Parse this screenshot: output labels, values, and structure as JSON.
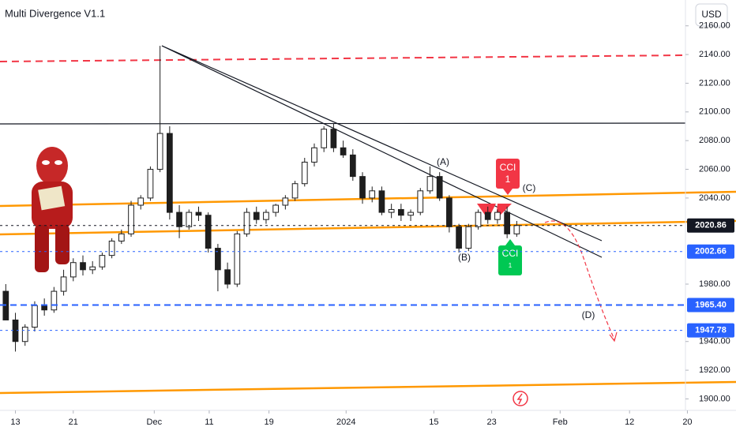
{
  "chart_data": {
    "type": "candlestick",
    "title": "Multi Divergence V1.1",
    "currency": "USD",
    "x": [
      -1,
      0,
      1,
      2,
      3,
      4,
      5,
      6,
      7,
      8,
      9,
      10,
      11,
      12,
      13,
      14,
      15,
      16,
      17,
      18,
      19,
      20,
      21,
      22,
      23,
      24,
      25,
      26,
      27,
      28,
      29,
      30,
      31,
      32,
      33,
      34,
      35,
      36,
      37,
      38,
      39,
      40,
      41,
      42,
      43,
      44,
      45,
      46,
      47,
      48,
      49,
      50,
      51,
      52
    ],
    "open": [
      1975,
      1955,
      1940,
      1950,
      1965,
      1962,
      1975,
      1985,
      1995,
      1990,
      1992,
      2000,
      2010,
      2015,
      2035,
      2040,
      2060,
      2085,
      2030,
      2020,
      2030,
      2028,
      2005,
      1990,
      1980,
      2015,
      2030,
      2025,
      2030,
      2035,
      2040,
      2050,
      2065,
      2075,
      2088,
      2075,
      2070,
      2055,
      2040,
      2045,
      2030,
      2032,
      2028,
      2030,
      2045,
      2055,
      2040,
      2020,
      2005,
      2020,
      2030,
      2025,
      2030,
      2015
    ],
    "high": [
      1980,
      1960,
      1952,
      1968,
      1970,
      1978,
      1990,
      1998,
      2000,
      1996,
      2002,
      2012,
      2018,
      2038,
      2042,
      2062,
      2146,
      2090,
      2035,
      2032,
      2034,
      2030,
      2008,
      1995,
      2017,
      2033,
      2034,
      2032,
      2036,
      2042,
      2052,
      2068,
      2078,
      2090,
      2092,
      2080,
      2074,
      2058,
      2048,
      2048,
      2036,
      2036,
      2032,
      2047,
      2062,
      2058,
      2042,
      2022,
      2022,
      2032,
      2034,
      2032,
      2034,
      2024
    ],
    "low": [
      1955,
      1933,
      1937,
      1947,
      1958,
      1960,
      1972,
      1982,
      1986,
      1987,
      1990,
      1998,
      2008,
      2013,
      2032,
      2038,
      2058,
      2025,
      2012,
      2018,
      2024,
      2002,
      1975,
      1977,
      1978,
      2013,
      2022,
      2022,
      2027,
      2032,
      2038,
      2048,
      2062,
      2072,
      2072,
      2068,
      2052,
      2036,
      2037,
      2028,
      2026,
      2024,
      2024,
      2028,
      2043,
      2038,
      2016,
      2002,
      2003,
      2018,
      2022,
      2022,
      2012,
      2013
    ],
    "close": [
      1955,
      1940,
      1950,
      1965,
      1962,
      1975,
      1985,
      1995,
      1990,
      1992,
      2000,
      2010,
      2015,
      2035,
      2040,
      2060,
      2085,
      2030,
      2020,
      2030,
      2028,
      2005,
      1990,
      1980,
      2015,
      2030,
      2025,
      2030,
      2035,
      2040,
      2050,
      2065,
      2075,
      2088,
      2075,
      2070,
      2055,
      2040,
      2045,
      2030,
      2032,
      2028,
      2030,
      2045,
      2055,
      2040,
      2020,
      2005,
      2020,
      2030,
      2025,
      2030,
      2015,
      2020.86
    ],
    "up_color": "#1e1e1e",
    "down_color": "#1e1e1e",
    "xlim": [
      -1.6,
      69.5
    ],
    "ylim": [
      1892,
      2178
    ],
    "xticks": [
      {
        "value": 0,
        "label": "13"
      },
      {
        "value": 6,
        "label": "21"
      },
      {
        "value": 14.4,
        "label": "Dec"
      },
      {
        "value": 20.1,
        "label": "11"
      },
      {
        "value": 26.3,
        "label": "19"
      },
      {
        "value": 34.3,
        "label": "2024"
      },
      {
        "value": 43.4,
        "label": "15"
      },
      {
        "value": 49.4,
        "label": "23"
      },
      {
        "value": 56.5,
        "label": "Feb"
      },
      {
        "value": 63.7,
        "label": "12"
      },
      {
        "value": 69.7,
        "label": "20"
      }
    ],
    "yticks": [
      {
        "value": 2160,
        "label": "2160.00"
      },
      {
        "value": 2140,
        "label": "2140.00"
      },
      {
        "value": 2120,
        "label": "2120.00"
      },
      {
        "value": 2100,
        "label": "2100.00"
      },
      {
        "value": 2080,
        "label": "2080.00"
      },
      {
        "value": 2060,
        "label": "2060.00"
      },
      {
        "value": 2040,
        "label": "2040.00"
      },
      {
        "value": 1980,
        "label": "1980.00"
      },
      {
        "value": 1940,
        "label": "1940.00"
      },
      {
        "value": 1920,
        "label": "1920.00"
      },
      {
        "value": 1900,
        "label": "1900.00"
      }
    ],
    "levels": [
      {
        "value": 2020.86,
        "label": "2020.86",
        "color": "#131722",
        "style": "dotted"
      },
      {
        "value": 2002.66,
        "label": "2002.66",
        "color": "#2962ff",
        "style": "dotted"
      },
      {
        "value": 1965.4,
        "label": "1965.40",
        "color": "#2962ff",
        "style": "dashed"
      },
      {
        "value": 1947.78,
        "label": "1947.78",
        "color": "#2962ff",
        "style": "dotted"
      }
    ],
    "annotations": [
      "(A)",
      "(B)",
      "(C)",
      "(D)",
      "CCI",
      "1",
      "CCI",
      "1"
    ]
  }
}
